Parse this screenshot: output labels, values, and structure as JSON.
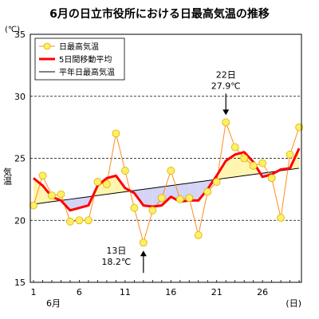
{
  "chart_data": {
    "type": "line",
    "title": "6月の日立市役所における日最高気温の推移",
    "y_unit": "(℃)",
    "ylabel": "気温",
    "x_unit": "(日)",
    "month_label": "6月",
    "ylim": [
      15,
      35
    ],
    "y_ticks": [
      15,
      20,
      25,
      30,
      35
    ],
    "xlim": [
      1,
      30
    ],
    "x_ticks": [
      1,
      6,
      11,
      16,
      21,
      26
    ],
    "grid": true,
    "legend_position": "top-left",
    "days": [
      1,
      2,
      3,
      4,
      5,
      6,
      7,
      8,
      9,
      10,
      11,
      12,
      13,
      14,
      15,
      16,
      17,
      18,
      19,
      20,
      21,
      22,
      23,
      24,
      25,
      26,
      27,
      28,
      29,
      30
    ],
    "series": [
      {
        "name": "日最高気温",
        "color": "#ff8c1a",
        "marker_color": "#ffee66",
        "values": [
          21.2,
          23.6,
          22.0,
          22.1,
          19.9,
          20.0,
          20.0,
          23.1,
          22.9,
          27.0,
          24.0,
          21.0,
          18.2,
          20.8,
          21.8,
          24.0,
          21.7,
          21.8,
          18.8,
          22.3,
          23.1,
          27.9,
          25.9,
          25.0,
          24.4,
          24.6,
          23.4,
          20.2,
          25.3,
          27.5
        ]
      },
      {
        "name": "5日間移動平均",
        "color": "#ff0000",
        "values": [
          23.4,
          22.8,
          21.9,
          21.6,
          20.8,
          21.0,
          21.2,
          22.8,
          23.4,
          23.6,
          22.6,
          22.2,
          21.2,
          21.1,
          21.2,
          21.9,
          21.5,
          21.6,
          21.6,
          22.5,
          23.6,
          24.8,
          25.3,
          25.5,
          24.7,
          23.5,
          23.7,
          24.1,
          24.2,
          25.8
        ]
      },
      {
        "name": "平年日最高気温",
        "color": "#000000",
        "values": [
          21.3,
          21.4,
          21.5,
          21.6,
          21.7,
          21.8,
          21.9,
          22.0,
          22.1,
          22.2,
          22.3,
          22.4,
          22.5,
          22.6,
          22.7,
          22.8,
          22.9,
          23.0,
          23.1,
          23.2,
          23.3,
          23.4,
          23.5,
          23.6,
          23.7,
          23.8,
          23.9,
          24.0,
          24.1,
          24.2
        ]
      }
    ],
    "fill_above_color": "#fff5b0",
    "fill_below_color": "#d4d4f5",
    "annotations": [
      {
        "day_label": "22日",
        "value_label": "27.9℃",
        "day": 22,
        "value": 27.9,
        "direction": "down"
      },
      {
        "day_label": "13日",
        "value_label": "18.2℃",
        "day": 13,
        "value": 18.2,
        "direction": "up"
      }
    ]
  }
}
